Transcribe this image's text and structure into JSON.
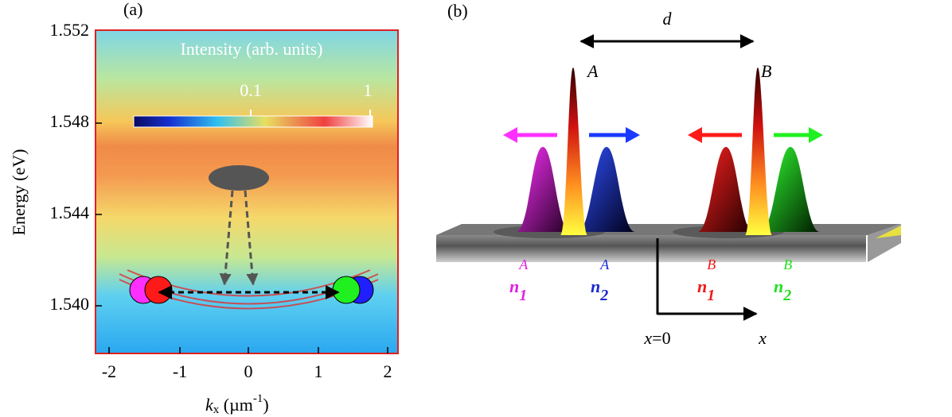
{
  "panel_a": {
    "label": "(a)",
    "y_label": "Energy (eV)",
    "y_ticks": [
      "1.552",
      "1.548",
      "1.544",
      "1.540"
    ],
    "x_ticks": [
      "-2",
      "-1",
      "0",
      "1",
      "2"
    ],
    "x_label": {
      "symbol": "k",
      "subscript": "x",
      "unit": " (µm",
      "exponent": "-1",
      "close": ")"
    },
    "colorbar": {
      "title": "Intensity (arb. units)",
      "ticks": [
        "0.1",
        "1"
      ]
    }
  },
  "panel_b": {
    "label": "(b)",
    "distance": "d",
    "site_a": "A",
    "site_b": "B",
    "modes": [
      {
        "symbol": "n",
        "subscript": "1",
        "superscript": "A"
      },
      {
        "symbol": "n",
        "subscript": "2",
        "superscript": "A"
      },
      {
        "symbol": "n",
        "subscript": "1",
        "superscript": "B"
      },
      {
        "symbol": "n",
        "subscript": "2",
        "superscript": "B"
      }
    ],
    "origin": {
      "symbol": "x",
      "rest": "=0"
    },
    "axis": "x"
  }
}
